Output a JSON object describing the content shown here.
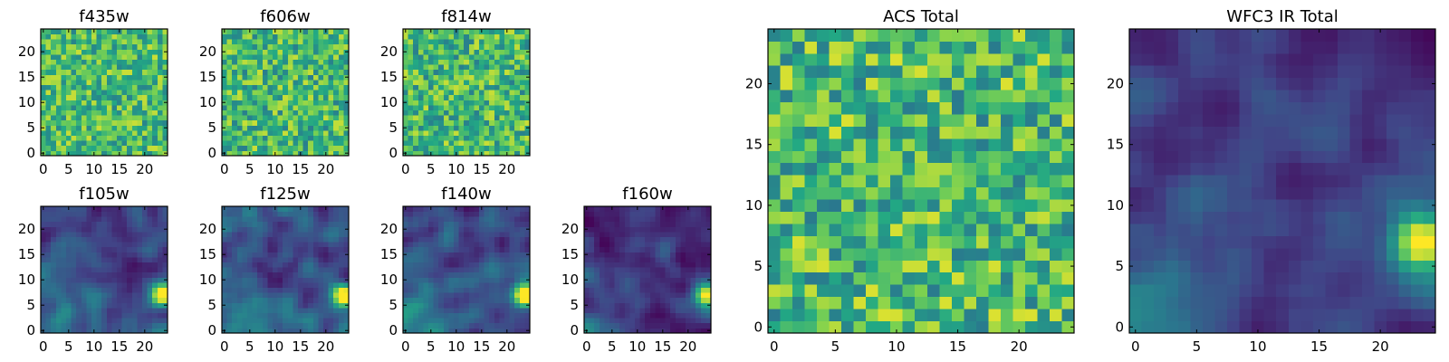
{
  "figure": {
    "colormap": "viridis",
    "colors": [
      "#440154",
      "#414487",
      "#2a788e",
      "#22a884",
      "#7ad151",
      "#fde725"
    ]
  },
  "chart_data": [
    {
      "type": "heatmap",
      "title": "f435w",
      "xlim": [
        0,
        24
      ],
      "ylim": [
        0,
        24
      ],
      "xticks": [
        0,
        5,
        10,
        15,
        20
      ],
      "yticks": [
        0,
        5,
        10,
        15,
        20
      ],
      "grid_size": 25,
      "pattern": "noise",
      "value_range": [
        0.45,
        0.92
      ],
      "bright_spot": null
    },
    {
      "type": "heatmap",
      "title": "f606w",
      "xlim": [
        0,
        24
      ],
      "ylim": [
        0,
        24
      ],
      "xticks": [
        0,
        5,
        10,
        15,
        20
      ],
      "yticks": [
        0,
        5,
        10,
        15,
        20
      ],
      "grid_size": 25,
      "pattern": "noise",
      "value_range": [
        0.42,
        0.92
      ],
      "bright_spot": null
    },
    {
      "type": "heatmap",
      "title": "f814w",
      "xlim": [
        0,
        24
      ],
      "ylim": [
        0,
        24
      ],
      "xticks": [
        0,
        5,
        10,
        15,
        20
      ],
      "yticks": [
        0,
        5,
        10,
        15,
        20
      ],
      "grid_size": 25,
      "pattern": "noise",
      "value_range": [
        0.42,
        0.92
      ],
      "bright_spot": null
    },
    {
      "type": "heatmap",
      "title": "f105w",
      "xlim": [
        0,
        24
      ],
      "ylim": [
        0,
        24
      ],
      "xticks": [
        0,
        5,
        10,
        15,
        20
      ],
      "yticks": [
        0,
        5,
        10,
        15,
        20
      ],
      "grid_size": 25,
      "pattern": "smooth",
      "value_range": [
        0.05,
        0.55
      ],
      "bright_spot": {
        "x": 23.5,
        "y": 7
      }
    },
    {
      "type": "heatmap",
      "title": "f125w",
      "xlim": [
        0,
        24
      ],
      "ylim": [
        0,
        24
      ],
      "xticks": [
        0,
        5,
        10,
        15,
        20
      ],
      "yticks": [
        0,
        5,
        10,
        15,
        20
      ],
      "grid_size": 25,
      "pattern": "smooth",
      "value_range": [
        0.05,
        0.55
      ],
      "bright_spot": {
        "x": 23.5,
        "y": 7
      }
    },
    {
      "type": "heatmap",
      "title": "f140w",
      "xlim": [
        0,
        24
      ],
      "ylim": [
        0,
        24
      ],
      "xticks": [
        0,
        5,
        10,
        15,
        20
      ],
      "yticks": [
        0,
        5,
        10,
        15,
        20
      ],
      "grid_size": 25,
      "pattern": "smooth",
      "value_range": [
        0.05,
        0.5
      ],
      "bright_spot": {
        "x": 23.5,
        "y": 7
      }
    },
    {
      "type": "heatmap",
      "title": "f160w",
      "xlim": [
        0,
        24
      ],
      "ylim": [
        0,
        24
      ],
      "xticks": [
        0,
        5,
        10,
        15,
        20
      ],
      "yticks": [
        0,
        5,
        10,
        15,
        20
      ],
      "grid_size": 25,
      "pattern": "smooth",
      "value_range": [
        0.0,
        0.42
      ],
      "bright_spot": {
        "x": 23.5,
        "y": 7
      }
    },
    {
      "type": "heatmap",
      "title": "ACS Total",
      "xlim": [
        0,
        24
      ],
      "ylim": [
        0,
        24
      ],
      "xticks": [
        0,
        5,
        10,
        15,
        20
      ],
      "yticks": [
        0,
        5,
        10,
        15,
        20
      ],
      "grid_size": 25,
      "pattern": "noise",
      "value_range": [
        0.4,
        0.95
      ],
      "bright_spot": null
    },
    {
      "type": "heatmap",
      "title": "WFC3 IR Total",
      "xlim": [
        0,
        24
      ],
      "ylim": [
        0,
        24
      ],
      "xticks": [
        0,
        5,
        10,
        15,
        20
      ],
      "yticks": [
        0,
        5,
        10,
        15,
        20
      ],
      "grid_size": 25,
      "pattern": "smooth",
      "value_range": [
        0.02,
        0.45
      ],
      "bright_spot": {
        "x": 23.5,
        "y": 7
      }
    }
  ]
}
